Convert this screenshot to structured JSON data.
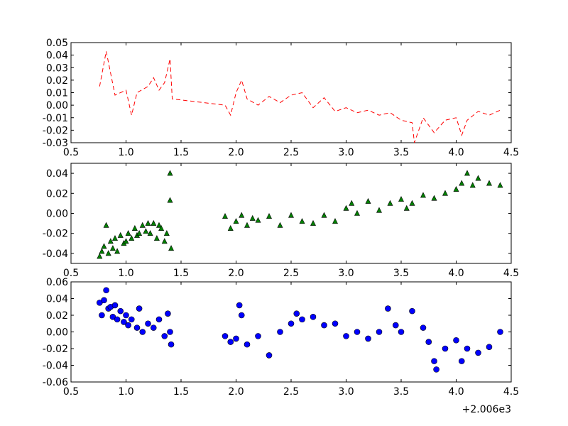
{
  "chart_data": [
    {
      "type": "line",
      "title": "",
      "xlabel": "",
      "ylabel": "",
      "xlim": [
        0.5,
        4.5
      ],
      "ylim": [
        -0.03,
        0.05
      ],
      "xticks": [
        "0.5",
        "1.0",
        "1.5",
        "2.0",
        "2.5",
        "3.0",
        "3.5",
        "4.0",
        "4.5"
      ],
      "yticks": [
        "-0.03",
        "-0.02",
        "-0.01",
        "0.00",
        "0.01",
        "0.02",
        "0.03",
        "0.04",
        "0.05"
      ],
      "series": [
        {
          "style": "dashed line",
          "color": "#ff0000",
          "x": [
            0.76,
            0.82,
            0.9,
            1.0,
            1.05,
            1.1,
            1.2,
            1.25,
            1.3,
            1.35,
            1.4,
            1.42,
            1.9,
            1.95,
            2.0,
            2.05,
            2.1,
            2.2,
            2.3,
            2.4,
            2.5,
            2.6,
            2.7,
            2.8,
            2.9,
            3.0,
            3.1,
            3.2,
            3.3,
            3.4,
            3.5,
            3.6,
            3.62,
            3.7,
            3.8,
            3.9,
            4.0,
            4.05,
            4.1,
            4.2,
            4.3,
            4.4
          ],
          "y": [
            0.015,
            0.043,
            0.008,
            0.012,
            -0.008,
            0.01,
            0.015,
            0.022,
            0.012,
            0.018,
            0.037,
            0.005,
            0.0,
            -0.008,
            0.01,
            0.02,
            0.005,
            0.0,
            0.007,
            0.002,
            0.008,
            0.01,
            -0.002,
            0.006,
            -0.005,
            -0.002,
            -0.006,
            -0.004,
            -0.008,
            -0.006,
            -0.012,
            -0.014,
            -0.03,
            -0.01,
            -0.022,
            -0.012,
            -0.01,
            -0.024,
            -0.012,
            -0.005,
            -0.008,
            -0.004
          ]
        }
      ]
    },
    {
      "type": "scatter",
      "title": "",
      "xlabel": "",
      "ylabel": "",
      "xlim": [
        0.5,
        4.5
      ],
      "ylim": [
        -0.05,
        0.05
      ],
      "xticks": [
        "0.5",
        "1.0",
        "1.5",
        "2.0",
        "2.5",
        "3.0",
        "3.5",
        "4.0",
        "4.5"
      ],
      "yticks": [
        "-0.04",
        "-0.02",
        "0.00",
        "0.02",
        "0.04"
      ],
      "series": [
        {
          "marker": "triangle",
          "color": "#008000",
          "x": [
            0.76,
            0.78,
            0.8,
            0.82,
            0.84,
            0.86,
            0.88,
            0.9,
            0.92,
            0.95,
            0.98,
            1.0,
            1.02,
            1.05,
            1.08,
            1.1,
            1.12,
            1.15,
            1.18,
            1.2,
            1.22,
            1.25,
            1.28,
            1.3,
            1.32,
            1.35,
            1.37,
            1.4,
            1.4,
            1.41,
            1.9,
            1.95,
            2.0,
            2.05,
            2.1,
            2.15,
            2.2,
            2.3,
            2.4,
            2.5,
            2.6,
            2.7,
            2.8,
            2.9,
            3.0,
            3.05,
            3.1,
            3.2,
            3.3,
            3.4,
            3.5,
            3.55,
            3.6,
            3.7,
            3.8,
            3.9,
            4.0,
            4.05,
            4.1,
            4.15,
            4.2,
            4.3,
            4.4
          ],
          "y": [
            -0.043,
            -0.038,
            -0.033,
            -0.012,
            -0.04,
            -0.028,
            -0.035,
            -0.025,
            -0.038,
            -0.022,
            -0.03,
            -0.028,
            -0.02,
            -0.025,
            -0.015,
            -0.022,
            -0.02,
            -0.012,
            -0.018,
            -0.01,
            -0.02,
            -0.01,
            -0.025,
            -0.012,
            -0.015,
            -0.028,
            -0.02,
            0.04,
            0.013,
            -0.035,
            -0.003,
            -0.015,
            -0.008,
            -0.002,
            -0.012,
            -0.005,
            -0.007,
            -0.003,
            -0.012,
            -0.002,
            -0.008,
            -0.01,
            -0.002,
            -0.008,
            0.005,
            0.01,
            0.0,
            0.012,
            0.003,
            0.01,
            0.014,
            0.005,
            0.01,
            0.018,
            0.015,
            0.02,
            0.024,
            0.03,
            0.04,
            0.028,
            0.035,
            0.03,
            0.028
          ]
        }
      ]
    },
    {
      "type": "scatter",
      "title": "",
      "xlabel": "",
      "ylabel": "",
      "xlim": [
        0.5,
        4.5
      ],
      "ylim": [
        -0.06,
        0.06
      ],
      "xticks": [
        "0.5",
        "1.0",
        "1.5",
        "2.0",
        "2.5",
        "3.0",
        "3.5",
        "4.0",
        "4.5"
      ],
      "yticks": [
        "-0.06",
        "-0.04",
        "-0.02",
        "0.00",
        "0.02",
        "0.04",
        "0.06"
      ],
      "x_offset_label": "+2.006e3",
      "series": [
        {
          "marker": "circle",
          "color": "#0000ff",
          "x": [
            0.76,
            0.78,
            0.8,
            0.82,
            0.84,
            0.86,
            0.88,
            0.9,
            0.92,
            0.95,
            0.98,
            1.0,
            1.02,
            1.05,
            1.1,
            1.12,
            1.15,
            1.2,
            1.25,
            1.3,
            1.35,
            1.38,
            1.4,
            1.41,
            1.9,
            1.95,
            2.0,
            2.03,
            2.05,
            2.1,
            2.2,
            2.3,
            2.4,
            2.5,
            2.55,
            2.6,
            2.7,
            2.8,
            2.9,
            3.0,
            3.1,
            3.2,
            3.3,
            3.38,
            3.45,
            3.5,
            3.6,
            3.7,
            3.75,
            3.8,
            3.82,
            3.9,
            4.0,
            4.05,
            4.1,
            4.2,
            4.3,
            4.4
          ],
          "y": [
            0.035,
            0.02,
            0.038,
            0.05,
            0.028,
            0.03,
            0.018,
            0.032,
            0.015,
            0.025,
            0.012,
            0.02,
            0.008,
            0.015,
            0.005,
            0.028,
            0.0,
            0.01,
            0.005,
            0.015,
            -0.005,
            0.022,
            0.0,
            -0.015,
            -0.005,
            -0.012,
            -0.008,
            0.032,
            0.02,
            -0.015,
            -0.005,
            -0.028,
            0.0,
            0.01,
            0.022,
            0.015,
            0.018,
            0.008,
            0.01,
            -0.005,
            0.0,
            -0.008,
            0.0,
            0.028,
            0.008,
            0.0,
            0.025,
            0.005,
            -0.012,
            -0.035,
            -0.045,
            -0.02,
            -0.01,
            -0.035,
            -0.02,
            -0.025,
            -0.018,
            0.0
          ]
        }
      ]
    }
  ]
}
